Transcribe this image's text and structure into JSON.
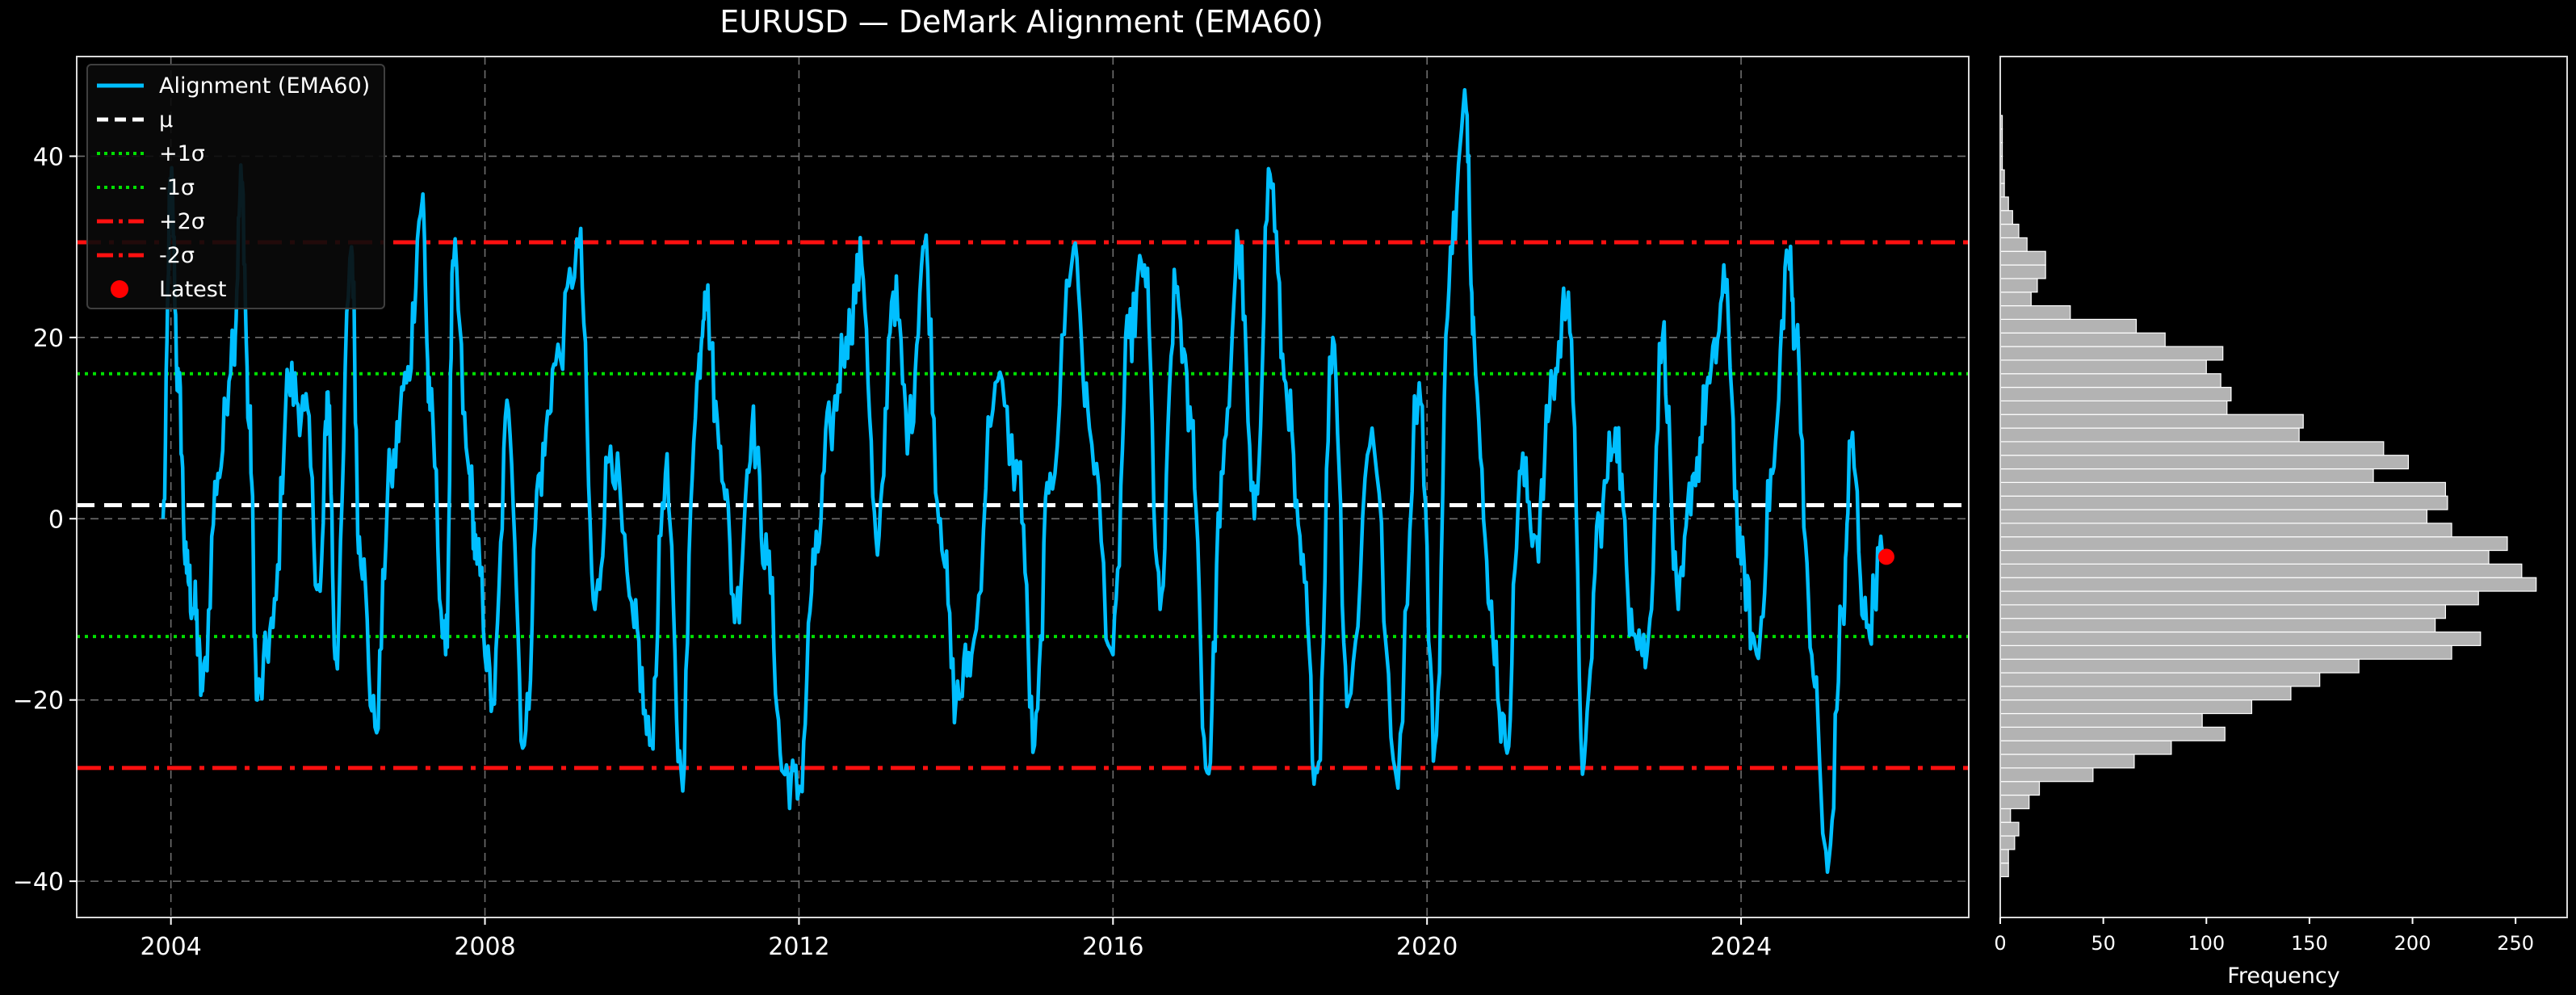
{
  "chart_data": [
    {
      "type": "line",
      "title": "EURUSD — DeMark Alignment (EMA60)",
      "x_range": [
        2002.8,
        2026.9
      ],
      "ylim": [
        -44,
        51
      ],
      "x_ticks": [
        2004,
        2008,
        2012,
        2016,
        2020,
        2024
      ],
      "x_tick_labels": [
        "2004",
        "2008",
        "2012",
        "2016",
        "2020",
        "2024"
      ],
      "y_ticks": [
        40,
        20,
        0,
        -20,
        -40
      ],
      "y_tick_labels": [
        "40",
        "20",
        "0",
        "−20",
        "−40"
      ],
      "grid": true,
      "legend_position": "top-left",
      "series": [
        {
          "name": "Alignment (EMA60)",
          "color": "#00bfff",
          "x": [
            2003.9,
            2004.0,
            2004.1,
            2004.2,
            2004.3,
            2004.4,
            2004.6,
            2004.8,
            2004.9,
            2005.0,
            2005.1,
            2005.3,
            2005.5,
            2005.7,
            2005.9,
            2006.0,
            2006.1,
            2006.3,
            2006.4,
            2006.6,
            2006.8,
            2007.0,
            2007.2,
            2007.3,
            2007.5,
            2007.6,
            2007.8,
            2007.9,
            2008.1,
            2008.3,
            2008.5,
            2008.7,
            2008.9,
            2009.2,
            2009.4,
            2009.6,
            2009.9,
            2010.1,
            2010.3,
            2010.5,
            2010.7,
            2010.8,
            2011.0,
            2011.2,
            2011.4,
            2011.6,
            2011.8,
            2012.0,
            2012.2,
            2012.4,
            2012.6,
            2012.8,
            2013.0,
            2013.2,
            2013.4,
            2013.6,
            2013.8,
            2014.0,
            2014.2,
            2014.5,
            2014.8,
            2015.0,
            2015.2,
            2015.5,
            2015.7,
            2016.0,
            2016.2,
            2016.4,
            2016.6,
            2016.8,
            2017.0,
            2017.2,
            2017.4,
            2017.6,
            2017.8,
            2018.0,
            2018.2,
            2018.4,
            2018.6,
            2018.8,
            2019.0,
            2019.3,
            2019.6,
            2019.9,
            2020.1,
            2020.3,
            2020.5,
            2020.6,
            2020.8,
            2021.0,
            2021.2,
            2021.4,
            2021.6,
            2021.8,
            2022.0,
            2022.2,
            2022.4,
            2022.6,
            2022.8,
            2023.0,
            2023.2,
            2023.4,
            2023.6,
            2023.8,
            2024.0,
            2024.2,
            2024.4,
            2024.6,
            2024.7,
            2024.9,
            2025.1,
            2025.3,
            2025.4,
            2025.6,
            2025.8
          ],
          "y": [
            0,
            37,
            14,
            -6,
            -10,
            -19,
            5,
            20,
            37,
            10,
            -20,
            -12,
            15,
            12,
            -8,
            14,
            -15,
            30,
            -2,
            -23,
            5,
            15,
            35,
            12,
            -15,
            28,
            5,
            -5,
            -20,
            12,
            -25,
            5,
            17,
            30,
            -10,
            8,
            -12,
            -25,
            5,
            -28,
            15,
            25,
            8,
            -10,
            10,
            -5,
            -28,
            -30,
            -5,
            10,
            20,
            28,
            -4,
            25,
            10,
            30,
            0,
            -20,
            -15,
            15,
            5,
            -25,
            5,
            30,
            10,
            -15,
            20,
            28,
            -10,
            25,
            10,
            -28,
            5,
            30,
            0,
            38,
            15,
            -5,
            -28,
            20,
            -20,
            10,
            -28,
            15,
            -25,
            30,
            45,
            20,
            -10,
            -25,
            5,
            -2,
            15,
            25,
            -27,
            0,
            10,
            -10,
            -15,
            20,
            -10,
            5,
            15,
            25,
            -5,
            -15,
            5,
            29,
            20,
            -15,
            -39,
            -10,
            8,
            -12,
            -4
          ]
        },
        {
          "name": "μ",
          "color": "#ffffff",
          "values": [
            1.5
          ]
        },
        {
          "name": "+1σ",
          "color": "#00e000",
          "values": [
            16
          ]
        },
        {
          "name": "-1σ",
          "color": "#00e000",
          "values": [
            -13
          ]
        },
        {
          "name": "+2σ",
          "color": "#ff1010",
          "values": [
            30.5
          ]
        },
        {
          "name": "-2σ",
          "color": "#ff1010",
          "values": [
            -27.5
          ]
        },
        {
          "name": "Latest",
          "color": "#ff0000",
          "x": [
            2025.85
          ],
          "y": [
            -4.2
          ]
        }
      ]
    },
    {
      "type": "bar",
      "orientation": "horizontal",
      "xlabel": "Frequency",
      "xlim": [
        0,
        275
      ],
      "ylim": [
        -44,
        51
      ],
      "x_ticks": [
        0,
        50,
        100,
        150,
        200,
        250
      ],
      "x_tick_labels": [
        "0",
        "50",
        "100",
        "150",
        "200",
        "250"
      ],
      "bin_edges": [
        -39.5,
        -38.0,
        -36.5,
        -35.0,
        -33.5,
        -32.0,
        -30.5,
        -29.0,
        -27.5,
        -26.0,
        -24.5,
        -23.0,
        -21.5,
        -20.0,
        -18.5,
        -17.0,
        -15.5,
        -14.0,
        -12.5,
        -11.0,
        -9.5,
        -8.0,
        -6.5,
        -5.0,
        -3.5,
        -2.0,
        -0.5,
        1.0,
        2.5,
        4.0,
        5.5,
        7.0,
        8.5,
        10.0,
        11.5,
        13.0,
        14.5,
        16.0,
        17.5,
        19.0,
        20.5,
        22.0,
        23.5,
        25.0,
        26.5,
        28.0,
        29.5,
        31.0,
        32.5,
        34.0,
        35.5,
        37.0,
        38.5,
        40.0,
        41.5,
        43.0,
        44.5,
        46.0
      ],
      "values": [
        4,
        4,
        7,
        9,
        5,
        14,
        19,
        45,
        65,
        83,
        109,
        98,
        122,
        141,
        155,
        174,
        219,
        233,
        211,
        216,
        232,
        260,
        253,
        237,
        246,
        219,
        207,
        217,
        216,
        181,
        198,
        186,
        145,
        147,
        110,
        112,
        107,
        100,
        108,
        80,
        66,
        34,
        15,
        18,
        22,
        22,
        13,
        9,
        6,
        4,
        2,
        2,
        1,
        1,
        1,
        1,
        0
      ],
      "bar_color": "#b3b3b3",
      "edge_color": "#ffffff"
    }
  ]
}
